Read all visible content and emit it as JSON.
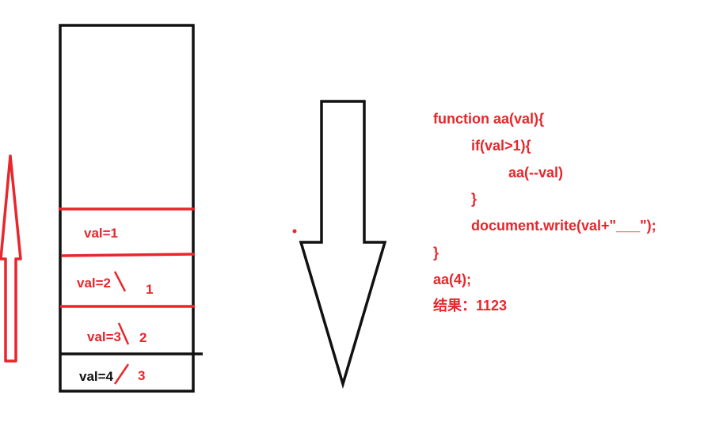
{
  "colors": {
    "accent": "#e8262b",
    "ink": "#111111"
  },
  "stack": {
    "frames": [
      {
        "label": "val=1",
        "order": ""
      },
      {
        "label": "val=2",
        "order": "1"
      },
      {
        "label": "val=3",
        "order": "2"
      },
      {
        "label": "val=4",
        "order": "3"
      }
    ]
  },
  "code": {
    "lines": [
      "function aa(val){",
      "if(val>1){",
      "aa(--val)",
      "}",
      "document.write(val+\"___\");",
      "}",
      "aa(4);",
      "结果：1123"
    ]
  }
}
